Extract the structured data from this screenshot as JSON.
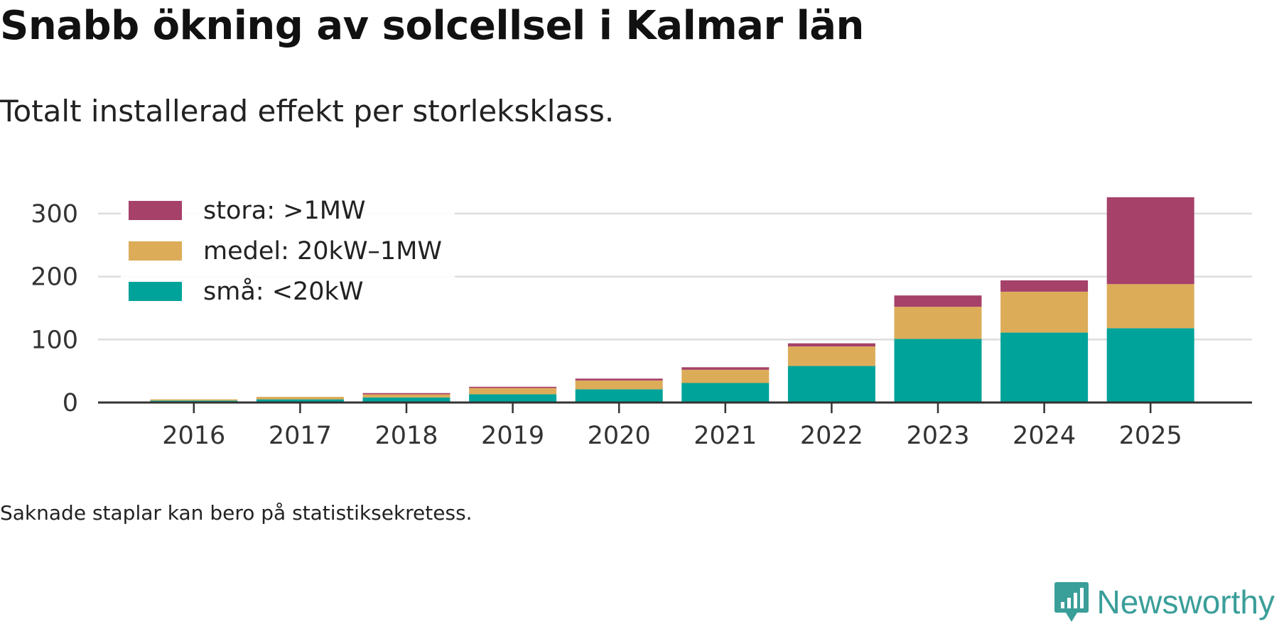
{
  "title": "Snabb ökning av solcellsel i Kalmar län",
  "subtitle": "Totalt installerad effekt per storleksklass.",
  "footnote": "Saknade staplar kan bero på statistiksekretess.",
  "brand": {
    "name": "Newsworthy",
    "icon": "newsworthy-logo-icon",
    "color": "#3a9e99"
  },
  "chart_data": {
    "type": "bar",
    "stacked": true,
    "categories": [
      "2016",
      "2017",
      "2018",
      "2019",
      "2020",
      "2021",
      "2022",
      "2023",
      "2024",
      "2025"
    ],
    "series": [
      {
        "name": "små: <20kW",
        "color": "#00a39a",
        "values": [
          3,
          5,
          8,
          13,
          21,
          31,
          58,
          101,
          111,
          118
        ]
      },
      {
        "name": "medel: 20kW–1MW",
        "color": "#dcac59",
        "values": [
          2,
          4,
          5,
          10,
          14,
          21,
          31,
          51,
          65,
          70
        ]
      },
      {
        "name": "stora: >1MW",
        "color": "#a6416a",
        "values": [
          0,
          0,
          2,
          2,
          3,
          4,
          5,
          18,
          18,
          138
        ]
      }
    ],
    "legend_order": [
      "stora: >1MW",
      "medel: 20kW–1MW",
      "små: <20kW"
    ],
    "legend_position": "top-left",
    "yticks": [
      0,
      100,
      200,
      300
    ],
    "ylim": [
      0,
      330
    ],
    "xlabel": "",
    "ylabel": "",
    "grid": true
  }
}
